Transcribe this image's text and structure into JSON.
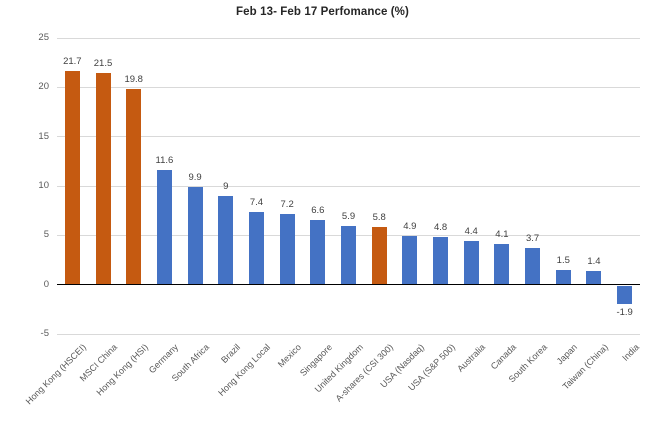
{
  "chart": {
    "title": "Feb 13- Feb 17 Perfomance (%)"
  },
  "chart_data": {
    "type": "bar",
    "title": "Feb 13- Feb 17 Perfomance (%)",
    "xlabel": "",
    "ylabel": "",
    "legend": "none",
    "grid": true,
    "ylim": [
      -5,
      25
    ],
    "yticks": [
      25,
      20,
      15,
      10,
      5,
      0,
      -5
    ],
    "categories": [
      "Hong Kong (HSCEI)",
      "MSCI China",
      "Hong Kong (HSI)",
      "Germany",
      "South Africa",
      "Brazil",
      "Hong Kong Local",
      "Mexico",
      "Singapore",
      "United Kingdom",
      "A-shares (CSI 300)",
      "USA (Nasdaq)",
      "USA (S&P 500)",
      "Australia",
      "Canada",
      "South Korea",
      "Japan",
      "Taiwan (China)",
      "India"
    ],
    "values": [
      21.7,
      21.5,
      19.8,
      11.6,
      9.9,
      9,
      7.4,
      7.2,
      6.6,
      5.9,
      5.8,
      4.9,
      4.8,
      4.4,
      4.1,
      3.7,
      1.5,
      1.4,
      -1.9
    ],
    "data_labels": [
      "21.7",
      "21.5",
      "19.8",
      "11.6",
      "9.9",
      "9",
      "7.4",
      "7.2",
      "6.6",
      "5.9",
      "5.8",
      "4.9",
      "4.8",
      "4.4",
      "4.1",
      "3.7",
      "1.5",
      "1.4",
      "-1.9"
    ],
    "highlight_indices": [
      0,
      1,
      2,
      10
    ],
    "colors": {
      "highlight_bar": "#C55A11",
      "default_bar": "#4472C4",
      "gridline": "#D9D9D9",
      "axis_line": "#000000",
      "tick_label": "#595959",
      "category_label": "#595959",
      "data_label": "#404040"
    }
  }
}
